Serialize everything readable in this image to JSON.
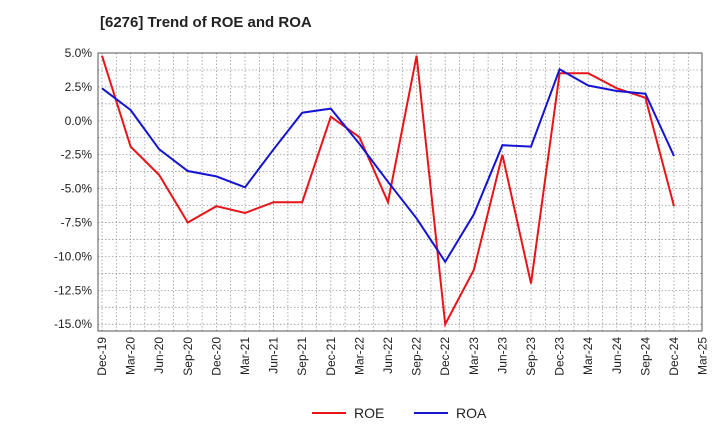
{
  "chart_data": {
    "type": "line",
    "title": "[6276]  Trend of ROE and ROA",
    "xlabel": "",
    "ylabel": "",
    "categories": [
      "Dec-19",
      "Mar-20",
      "Jun-20",
      "Sep-20",
      "Dec-20",
      "Mar-21",
      "Jun-21",
      "Sep-21",
      "Dec-21",
      "Mar-22",
      "Jun-22",
      "Sep-22",
      "Dec-22",
      "Mar-23",
      "Jun-23",
      "Sep-23",
      "Dec-23",
      "Mar-24",
      "Jun-24",
      "Sep-24",
      "Dec-24",
      "Mar-25"
    ],
    "y_tick_labels": [
      "5.0%",
      "2.5%",
      "0.0%",
      "-2.5%",
      "-5.0%",
      "-7.5%",
      "-10.0%",
      "-12.5%",
      "-15.0%"
    ],
    "ylim": [
      -15.5,
      5.0
    ],
    "grid": true,
    "legend_position": "bottom-center",
    "series": [
      {
        "name": "ROE",
        "color": "#e8141a",
        "values": [
          4.8,
          -1.9,
          -4.0,
          -7.5,
          -6.3,
          -6.8,
          -6.0,
          -6.0,
          0.3,
          -1.2,
          -6.0,
          4.8,
          -15.0,
          -11.0,
          -2.5,
          -12.0,
          3.5,
          3.5,
          2.4,
          1.7,
          -6.3,
          null
        ]
      },
      {
        "name": "ROA",
        "color": "#1414d2",
        "values": [
          2.4,
          0.8,
          -2.1,
          -3.7,
          -4.1,
          -4.9,
          -2.1,
          0.6,
          0.9,
          -1.7,
          -4.5,
          -7.2,
          -10.4,
          -6.9,
          -1.8,
          -1.9,
          3.8,
          2.6,
          2.2,
          2.0,
          -2.6,
          null
        ]
      }
    ]
  }
}
